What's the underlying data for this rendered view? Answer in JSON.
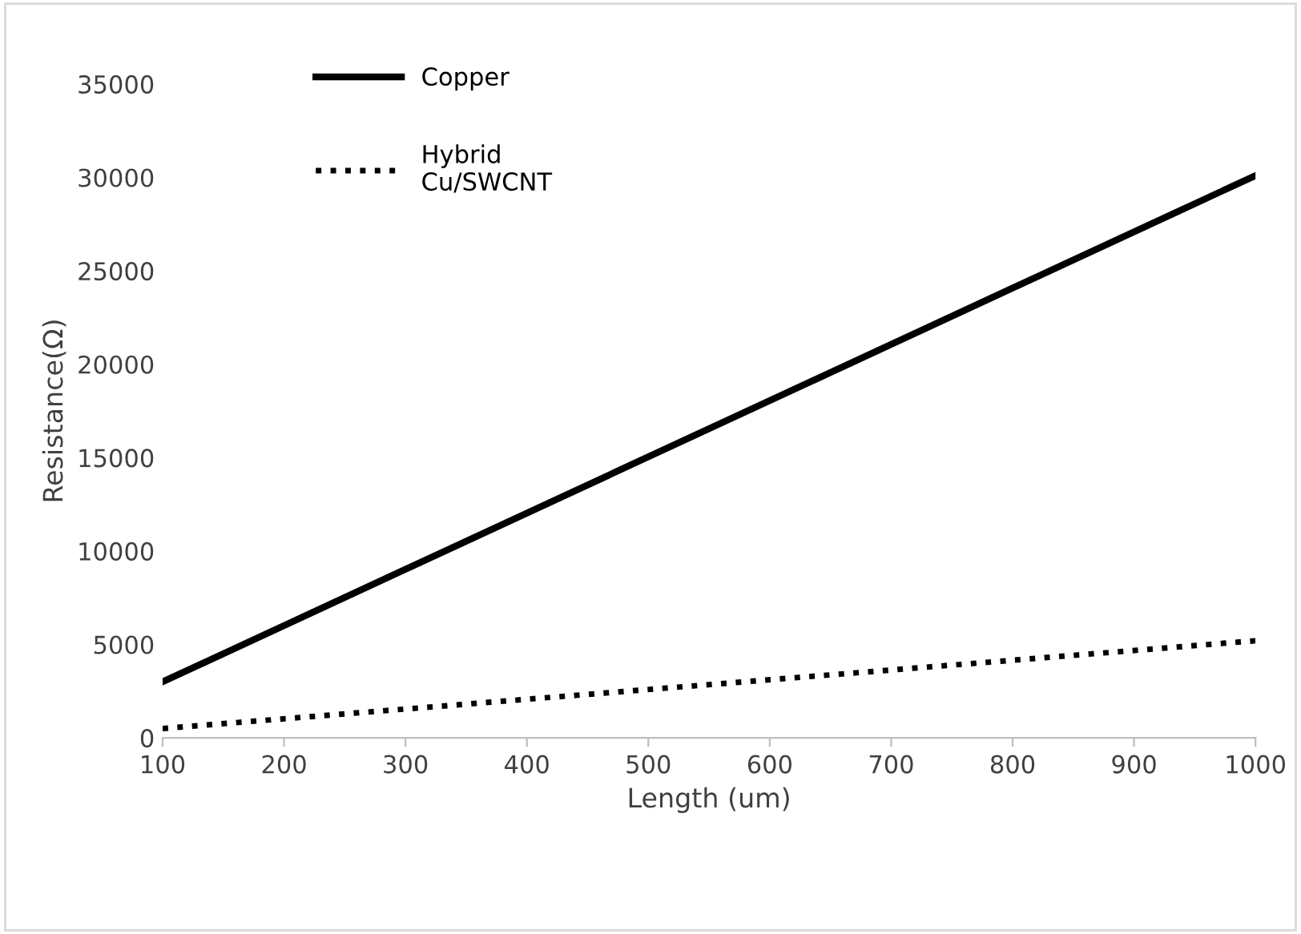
{
  "chart_data": {
    "type": "line",
    "xlabel": "Length (um)",
    "ylabel": "Resistance(Ω)",
    "x": [
      100,
      1000
    ],
    "series": [
      {
        "name": "Copper",
        "color": "#000000",
        "values": [
          3000,
          30100
        ],
        "line_style": "solid"
      },
      {
        "name": "Hybrid\nCu/SWCNT",
        "color": "#000000",
        "values": [
          500,
          5200
        ],
        "line_style": "dotted"
      }
    ],
    "xlim": [
      100,
      1000
    ],
    "xticks": [
      100,
      200,
      300,
      400,
      500,
      600,
      700,
      800,
      900,
      1000
    ],
    "ylim": [
      0,
      35000
    ],
    "yticks": [
      0,
      5000,
      10000,
      15000,
      20000,
      25000,
      30000,
      35000
    ],
    "grid": false,
    "legend": "top left",
    "marker": "none"
  }
}
